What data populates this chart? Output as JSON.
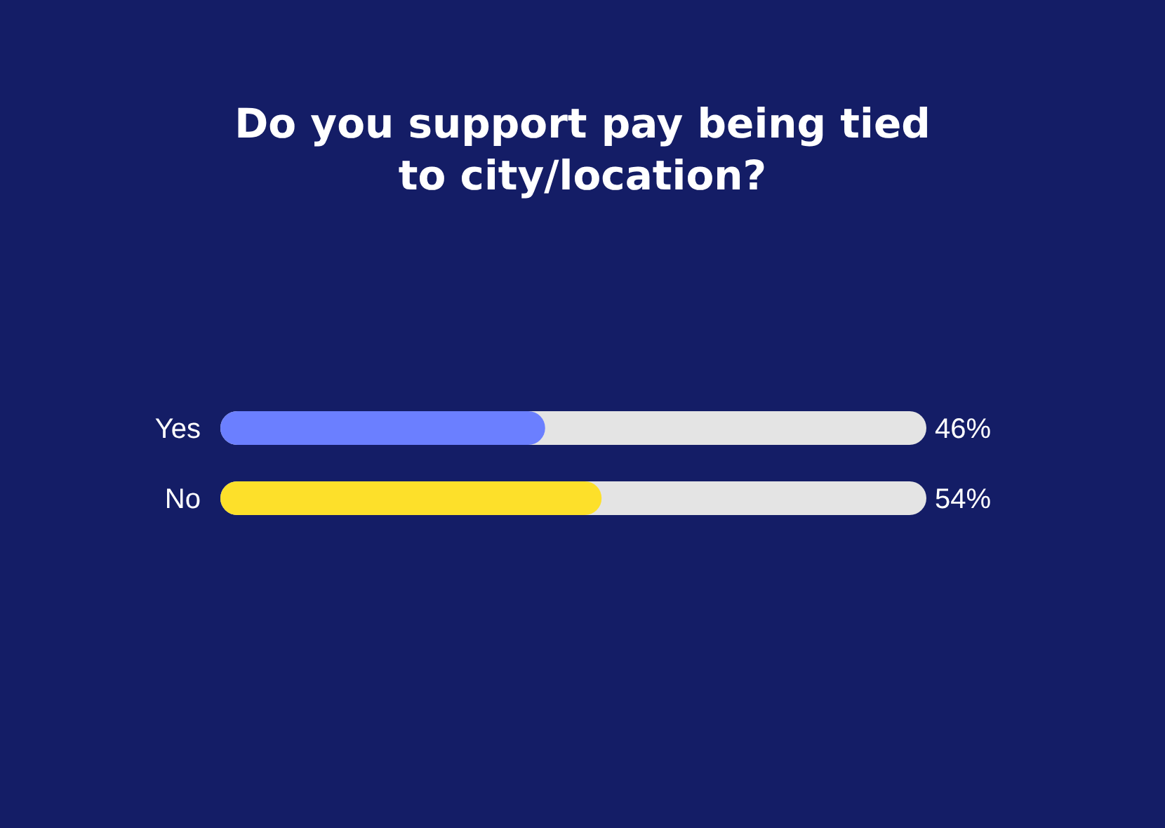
{
  "chart_data": {
    "type": "bar",
    "orientation": "horizontal",
    "title": "Do you support pay being tied to city/location?",
    "categories": [
      "Yes",
      "No"
    ],
    "values": [
      46,
      54
    ],
    "colors": [
      "#6b7fff",
      "#fde02a"
    ],
    "value_labels": [
      "46%",
      "54%"
    ],
    "xlim": [
      0,
      100
    ],
    "tick_labels": "y"
  }
}
